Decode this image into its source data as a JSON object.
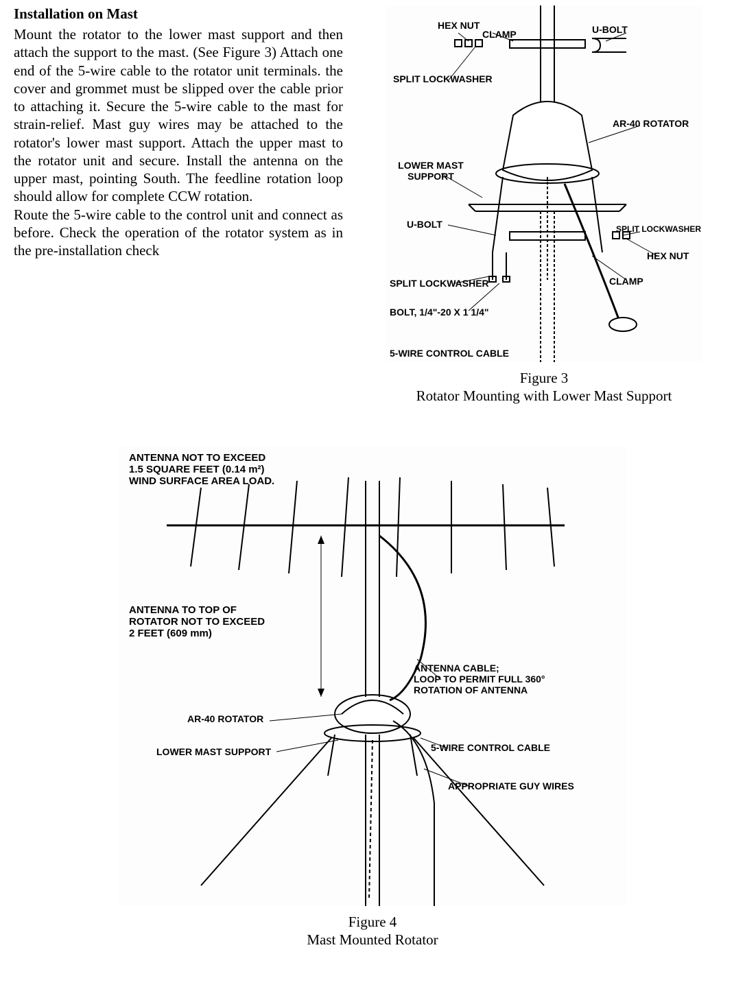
{
  "heading": "Installation on Mast",
  "paragraph1": "Mount the rotator to the lower mast support and then attach the support to the mast. (See Figure 3) Attach one end of the 5-wire cable to the rotator unit terminals. the cover and grommet must be slipped over the cable prior to attaching it. Secure the 5-wire cable to the mast for strain-relief. Mast guy wires may be attached to the rotator's lower mast support. Attach the upper mast to the rotator unit and secure. Install the antenna on the upper mast, pointing South. The feedline rotation loop should allow for complete CCW rotation.",
  "paragraph2": "Route the 5-wire cable to the control unit and connect as before. Check the operation of the rotator system as in the pre-installation check",
  "figure3": {
    "caption_line1": "Figure 3",
    "caption_line2": "Rotator Mounting with Lower Mast Support",
    "labels": {
      "hex_nut_top": "HEX NUT",
      "clamp_top": "CLAMP",
      "u_bolt_top": "U-BOLT",
      "split_lockwasher_top": "SPLIT LOCKWASHER",
      "ar40": "AR-40 ROTATOR",
      "lower_mast_support": "LOWER MAST\nSUPPORT",
      "u_bolt_mid": "U-BOLT",
      "split_lockwasher_right": "SPLIT LOCKWASHER",
      "hex_nut_right": "HEX NUT",
      "clamp_right": "CLAMP",
      "split_lockwasher_left": "SPLIT LOCKWASHER",
      "bolt": "BOLT, 1/4\"-20 X 1 1/4\"",
      "cable": "5-WIRE CONTROL CABLE"
    }
  },
  "figure4": {
    "caption_line1": "Figure 4",
    "caption_line2": "Mast Mounted Rotator",
    "labels": {
      "antenna_spec": "ANTENNA NOT TO EXCEED\n1.5 SQUARE FEET (0.14 m²)\nWIND SURFACE AREA LOAD.",
      "antenna_to_top": "ANTENNA TO TOP OF\nROTATOR NOT TO EXCEED\n2 FEET (609 mm)",
      "ar40": "AR-40 ROTATOR",
      "lower_mast_support": "LOWER MAST SUPPORT",
      "antenna_cable": "ANTENNA CABLE;\nLOOP TO PERMIT FULL 360°\nROTATION OF ANTENNA",
      "control_cable": "5-WIRE CONTROL CABLE",
      "guy_wires": "APPROPRIATE GUY WIRES"
    }
  },
  "diagram_style": {
    "label_font": "Arial",
    "label_fontsize": 14,
    "label_weight": "bold",
    "stroke_color": "#000000",
    "background": "#ffffff"
  }
}
